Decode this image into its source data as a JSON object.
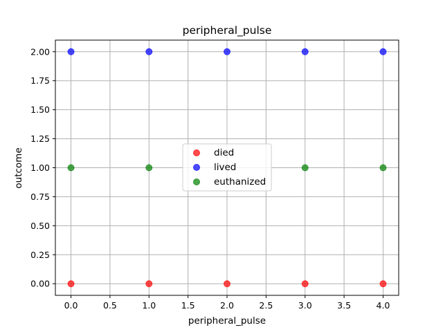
{
  "chart_data": {
    "type": "scatter",
    "title": "peripheral_pulse",
    "xlabel": "peripheral_pulse",
    "ylabel": "outcome",
    "xlim": [
      -0.2,
      4.2
    ],
    "ylim": [
      -0.1,
      2.1
    ],
    "xticks": [
      0.0,
      0.5,
      1.0,
      1.5,
      2.0,
      2.5,
      3.0,
      3.5,
      4.0
    ],
    "yticks": [
      0.0,
      0.25,
      0.5,
      0.75,
      1.0,
      1.25,
      1.5,
      1.75,
      2.0
    ],
    "xtick_labels": [
      "0.0",
      "0.5",
      "1.0",
      "1.5",
      "2.0",
      "2.5",
      "3.0",
      "3.5",
      "4.0"
    ],
    "ytick_labels": [
      "0.00",
      "0.25",
      "0.50",
      "0.75",
      "1.00",
      "1.25",
      "1.50",
      "1.75",
      "2.00"
    ],
    "grid": true,
    "legend_position": "center",
    "series": [
      {
        "name": "died",
        "color": "#ff0000",
        "points": [
          {
            "x": 0,
            "y": 0
          },
          {
            "x": 1,
            "y": 0
          },
          {
            "x": 2,
            "y": 0
          },
          {
            "x": 3,
            "y": 0
          },
          {
            "x": 4,
            "y": 0
          }
        ]
      },
      {
        "name": "lived",
        "color": "#0000ff",
        "points": [
          {
            "x": 0,
            "y": 2
          },
          {
            "x": 1,
            "y": 2
          },
          {
            "x": 2,
            "y": 2
          },
          {
            "x": 3,
            "y": 2
          },
          {
            "x": 4,
            "y": 2
          }
        ]
      },
      {
        "name": "euthanized",
        "color": "#008000",
        "points": [
          {
            "x": 0,
            "y": 1
          },
          {
            "x": 1,
            "y": 1
          },
          {
            "x": 3,
            "y": 1
          },
          {
            "x": 4,
            "y": 1
          }
        ]
      }
    ]
  }
}
